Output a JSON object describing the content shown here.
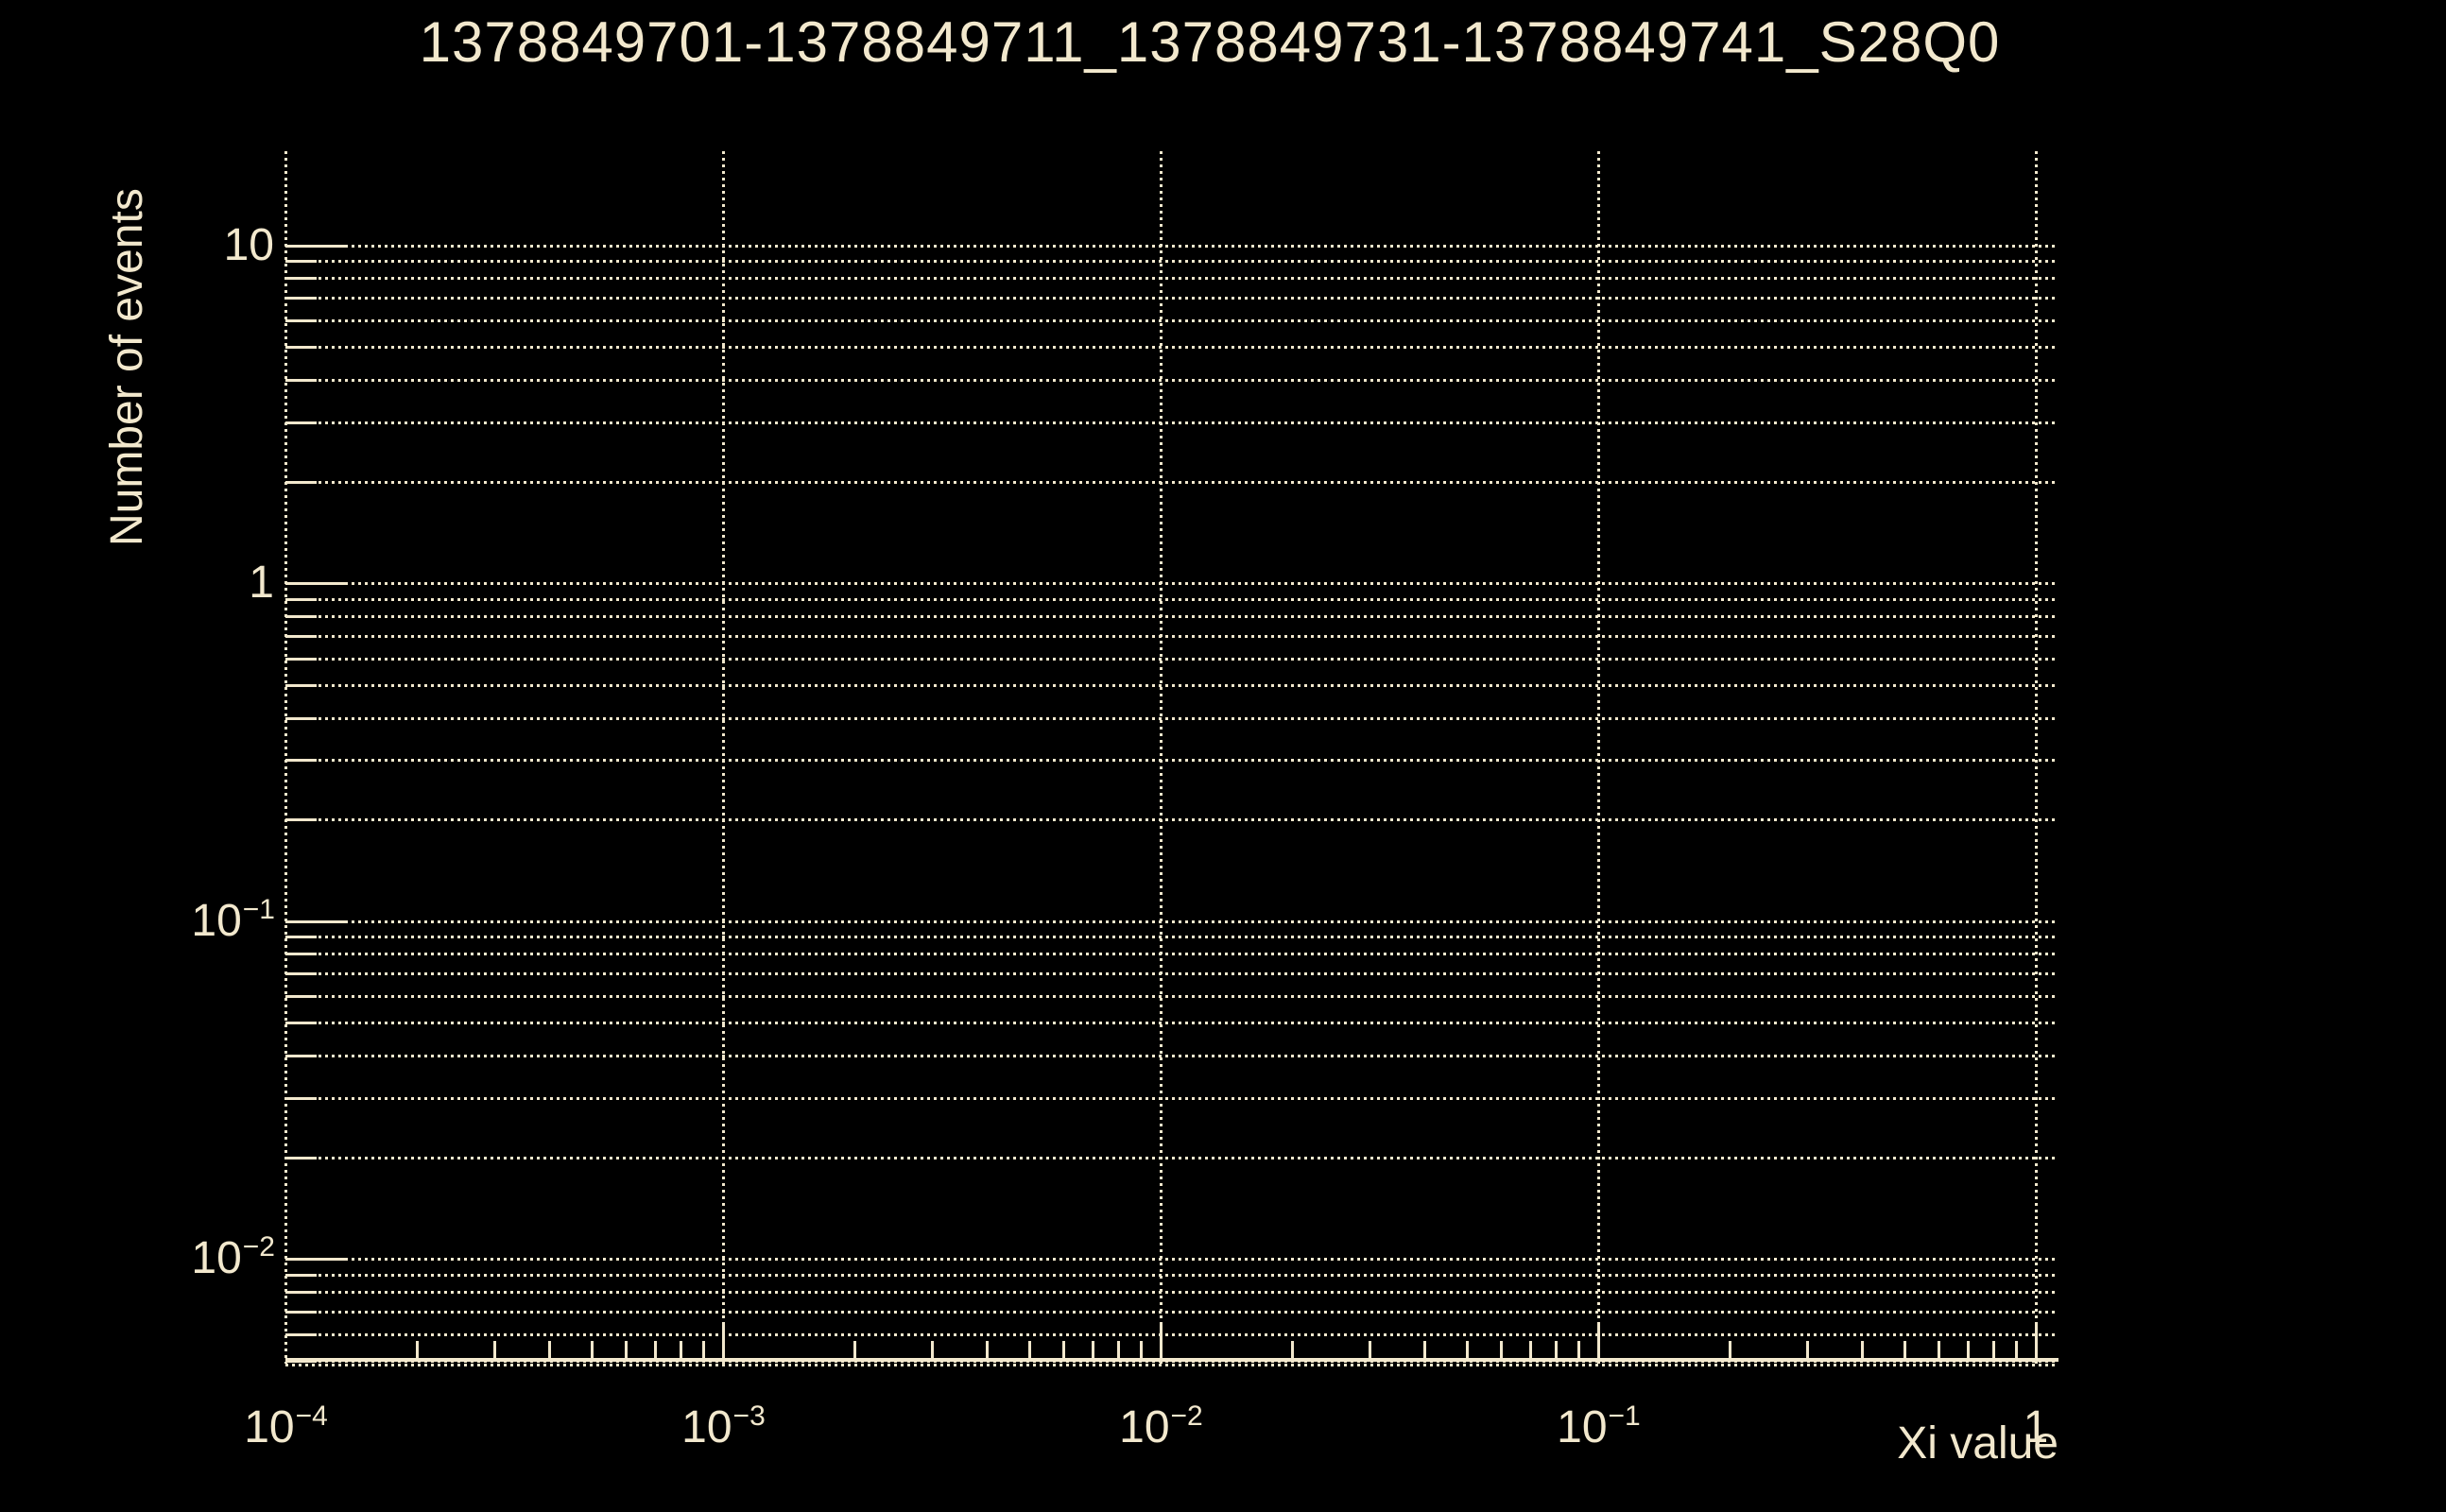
{
  "title": "1378849701-1378849711_1378849731-1378849741_S28Q0",
  "colors": {
    "background": "#000000",
    "foreground": "#F2E8CD"
  },
  "x_axis": {
    "title": "Xi value",
    "scale": "log",
    "tick_labels": [
      {
        "base": "10",
        "exp": "−4",
        "value": 0.0001
      },
      {
        "base": "10",
        "exp": "−3",
        "value": 0.001
      },
      {
        "base": "10",
        "exp": "−2",
        "value": 0.01
      },
      {
        "base": "10",
        "exp": "−1",
        "value": 0.1
      },
      {
        "base": "1",
        "exp": "",
        "value": 1
      }
    ]
  },
  "y_axis": {
    "title": "Number of events",
    "scale": "log",
    "tick_labels": [
      {
        "base": "10",
        "exp": "",
        "value": 10
      },
      {
        "base": "1",
        "exp": "",
        "value": 1
      },
      {
        "base": "10",
        "exp": "−1",
        "value": 0.1
      },
      {
        "base": "10",
        "exp": "−2",
        "value": 0.01
      }
    ]
  },
  "chart_data": {
    "type": "line",
    "title": "1378849701-1378849711_1378849731-1378849741_S28Q0",
    "xlabel": "Xi value",
    "ylabel": "Number of events",
    "xscale": "log",
    "yscale": "log",
    "xlim": [
      0.0001,
      1.105
    ],
    "ylim": [
      0.005,
      19
    ],
    "grid": true,
    "x_grid_values": [
      0.0001,
      0.001,
      0.01,
      0.1,
      1
    ],
    "y_major_values": [
      10,
      1,
      0.1,
      0.01
    ],
    "x_major_values": [
      0.001,
      0.01,
      0.1,
      1
    ],
    "series": [],
    "note": "Empty histogram frame: gridlines only, no data points plotted"
  }
}
